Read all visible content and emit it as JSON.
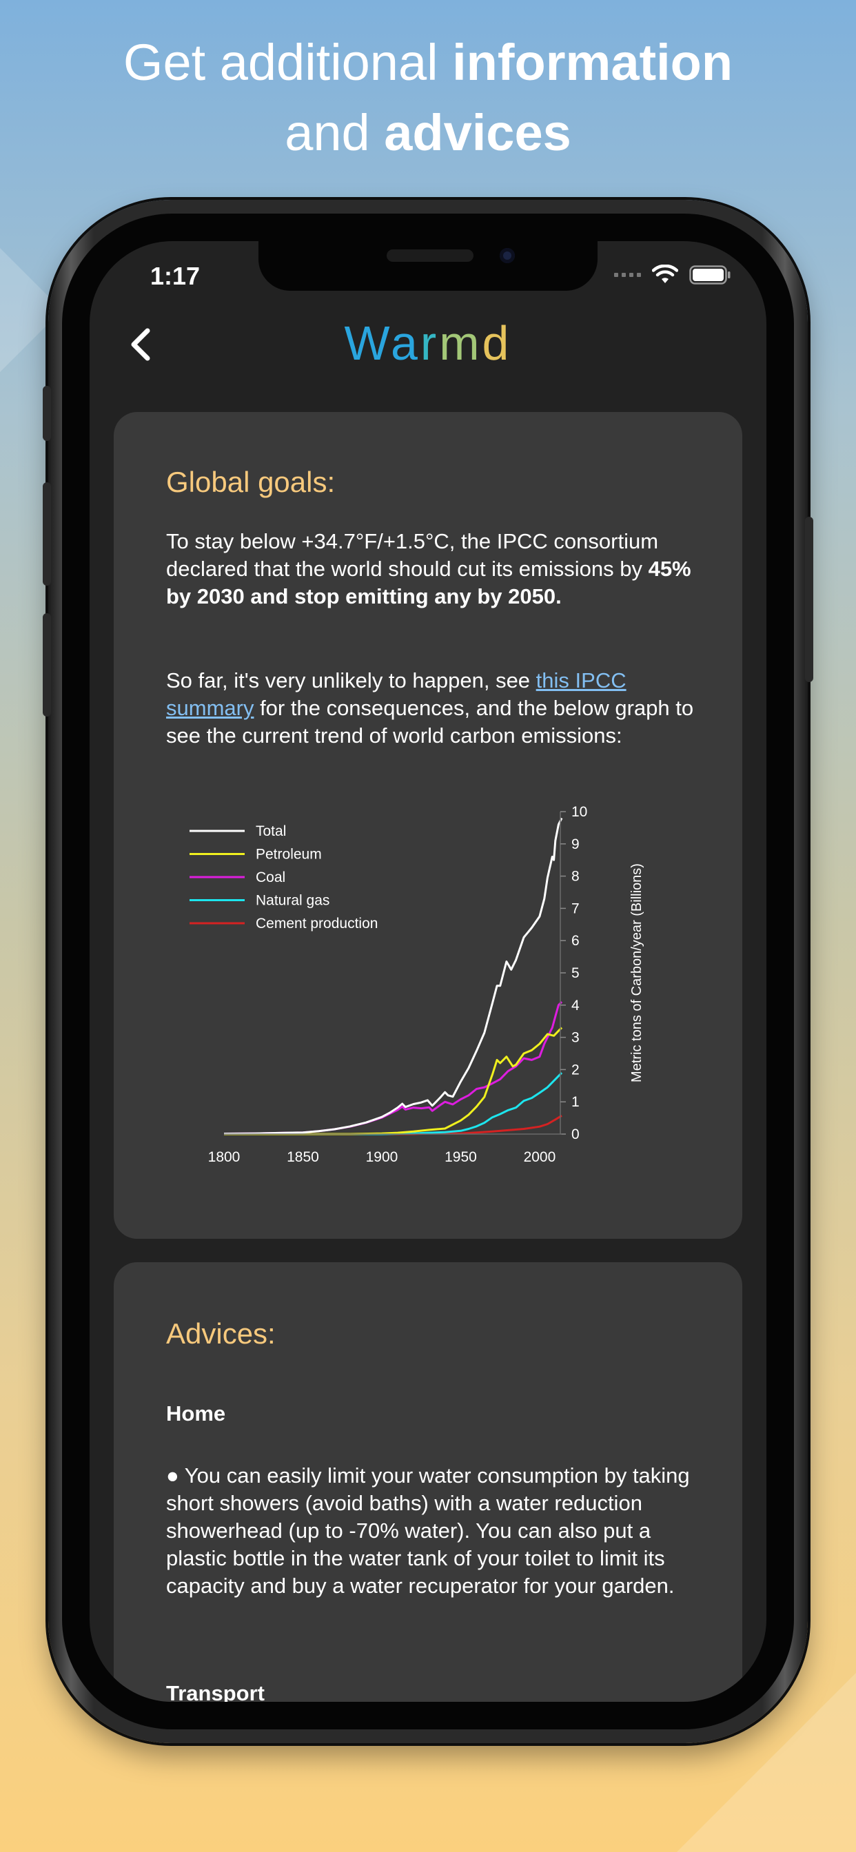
{
  "headline": {
    "line1_regular": "Get additional ",
    "line1_bold": "information",
    "line2_regular": "and ",
    "line2_bold": "advices"
  },
  "status_bar": {
    "time": "1:17"
  },
  "nav": {
    "title_parts": [
      {
        "text": "W",
        "color": "#2aa5de"
      },
      {
        "text": "a",
        "color": "#2aa5de"
      },
      {
        "text": "r",
        "color": "#35b6c4"
      },
      {
        "text": "m",
        "color": "#a3c777"
      },
      {
        "text": "d",
        "color": "#e6c35c"
      }
    ]
  },
  "global_goals": {
    "title": "Global goals:",
    "p1_text": "To stay below +34.7°F/+1.5°C, the IPCC consortium declared that the world should cut its emissions by ",
    "p1_bold": "45% by 2030 and stop emitting any by 2050.",
    "p2_before": "So far, it's very unlikely to happen, see ",
    "p2_link": "this IPCC summary",
    "p2_after": " for the consequences, and the below graph to see the current trend of world carbon emissions:"
  },
  "chart_data": {
    "type": "line",
    "ylabel": "Metric tons of Carbon/year (Billions)",
    "xlim": [
      1800,
      2014
    ],
    "ylim": [
      0,
      10
    ],
    "x_ticks": [
      1800,
      1850,
      1900,
      1950,
      2000
    ],
    "y_ticks": [
      0,
      1,
      2,
      3,
      4,
      5,
      6,
      7,
      8,
      9,
      10
    ],
    "legend_placement": "top-left",
    "series": [
      {
        "name": "Total",
        "color": "#ffffff",
        "points": [
          [
            1800,
            0.01
          ],
          [
            1820,
            0.02
          ],
          [
            1840,
            0.04
          ],
          [
            1850,
            0.05
          ],
          [
            1860,
            0.09
          ],
          [
            1870,
            0.15
          ],
          [
            1880,
            0.24
          ],
          [
            1890,
            0.36
          ],
          [
            1900,
            0.53
          ],
          [
            1905,
            0.66
          ],
          [
            1910,
            0.82
          ],
          [
            1913,
            0.94
          ],
          [
            1915,
            0.84
          ],
          [
            1920,
            0.93
          ],
          [
            1925,
            0.98
          ],
          [
            1929,
            1.05
          ],
          [
            1932,
            0.88
          ],
          [
            1937,
            1.13
          ],
          [
            1940,
            1.3
          ],
          [
            1942,
            1.2
          ],
          [
            1945,
            1.16
          ],
          [
            1950,
            1.63
          ],
          [
            1955,
            2.05
          ],
          [
            1960,
            2.58
          ],
          [
            1965,
            3.14
          ],
          [
            1970,
            4.05
          ],
          [
            1973,
            4.6
          ],
          [
            1975,
            4.6
          ],
          [
            1979,
            5.35
          ],
          [
            1982,
            5.1
          ],
          [
            1985,
            5.4
          ],
          [
            1990,
            6.1
          ],
          [
            1995,
            6.4
          ],
          [
            2000,
            6.75
          ],
          [
            2003,
            7.3
          ],
          [
            2005,
            7.95
          ],
          [
            2008,
            8.6
          ],
          [
            2009,
            8.5
          ],
          [
            2010,
            9.1
          ],
          [
            2012,
            9.6
          ],
          [
            2014,
            9.8
          ]
        ]
      },
      {
        "name": "Petroleum",
        "color": "#f0f01e",
        "points": [
          [
            1800,
            0
          ],
          [
            1880,
            0
          ],
          [
            1900,
            0.02
          ],
          [
            1910,
            0.04
          ],
          [
            1920,
            0.08
          ],
          [
            1930,
            0.13
          ],
          [
            1940,
            0.17
          ],
          [
            1950,
            0.42
          ],
          [
            1955,
            0.6
          ],
          [
            1960,
            0.85
          ],
          [
            1965,
            1.15
          ],
          [
            1970,
            1.84
          ],
          [
            1973,
            2.3
          ],
          [
            1975,
            2.2
          ],
          [
            1979,
            2.4
          ],
          [
            1983,
            2.1
          ],
          [
            1985,
            2.15
          ],
          [
            1990,
            2.5
          ],
          [
            1995,
            2.6
          ],
          [
            2000,
            2.8
          ],
          [
            2005,
            3.1
          ],
          [
            2009,
            3.05
          ],
          [
            2012,
            3.2
          ],
          [
            2014,
            3.3
          ]
        ]
      },
      {
        "name": "Coal",
        "color": "#dd1ddf",
        "points": [
          [
            1800,
            0.01
          ],
          [
            1820,
            0.02
          ],
          [
            1840,
            0.04
          ],
          [
            1850,
            0.05
          ],
          [
            1860,
            0.09
          ],
          [
            1870,
            0.15
          ],
          [
            1880,
            0.23
          ],
          [
            1890,
            0.35
          ],
          [
            1900,
            0.51
          ],
          [
            1910,
            0.75
          ],
          [
            1913,
            0.85
          ],
          [
            1915,
            0.76
          ],
          [
            1920,
            0.82
          ],
          [
            1925,
            0.8
          ],
          [
            1930,
            0.83
          ],
          [
            1932,
            0.72
          ],
          [
            1937,
            0.9
          ],
          [
            1940,
            1.0
          ],
          [
            1945,
            0.92
          ],
          [
            1950,
            1.08
          ],
          [
            1955,
            1.2
          ],
          [
            1960,
            1.4
          ],
          [
            1965,
            1.45
          ],
          [
            1970,
            1.57
          ],
          [
            1975,
            1.7
          ],
          [
            1980,
            1.95
          ],
          [
            1985,
            2.1
          ],
          [
            1990,
            2.35
          ],
          [
            1995,
            2.3
          ],
          [
            2000,
            2.4
          ],
          [
            2003,
            2.8
          ],
          [
            2005,
            3.0
          ],
          [
            2008,
            3.3
          ],
          [
            2010,
            3.65
          ],
          [
            2012,
            4.0
          ],
          [
            2014,
            4.1
          ]
        ]
      },
      {
        "name": "Natural gas",
        "color": "#1de5ee",
        "points": [
          [
            1800,
            0
          ],
          [
            1900,
            0
          ],
          [
            1920,
            0.02
          ],
          [
            1930,
            0.04
          ],
          [
            1940,
            0.06
          ],
          [
            1950,
            0.1
          ],
          [
            1955,
            0.16
          ],
          [
            1960,
            0.24
          ],
          [
            1965,
            0.35
          ],
          [
            1970,
            0.52
          ],
          [
            1975,
            0.62
          ],
          [
            1980,
            0.74
          ],
          [
            1985,
            0.82
          ],
          [
            1990,
            1.03
          ],
          [
            1995,
            1.12
          ],
          [
            2000,
            1.28
          ],
          [
            2005,
            1.45
          ],
          [
            2010,
            1.7
          ],
          [
            2014,
            1.9
          ]
        ]
      },
      {
        "name": "Cement production",
        "color": "#d42222",
        "points": [
          [
            1800,
            0
          ],
          [
            1920,
            0
          ],
          [
            1930,
            0.02
          ],
          [
            1940,
            0.02
          ],
          [
            1950,
            0.02
          ],
          [
            1960,
            0.05
          ],
          [
            1970,
            0.08
          ],
          [
            1980,
            0.12
          ],
          [
            1990,
            0.16
          ],
          [
            2000,
            0.23
          ],
          [
            2005,
            0.31
          ],
          [
            2010,
            0.45
          ],
          [
            2014,
            0.57
          ]
        ]
      }
    ]
  },
  "advices": {
    "title": "Advices:",
    "home_heading": "Home",
    "home_text": "● You can easily limit your water consumption by taking short showers (avoid baths) with a water reduction showerhead (up to -70% water). You can also put a plastic bottle in the water tank of your toilet to limit its capacity and buy a water recuperator for your garden.",
    "transport_heading": "Transport"
  }
}
